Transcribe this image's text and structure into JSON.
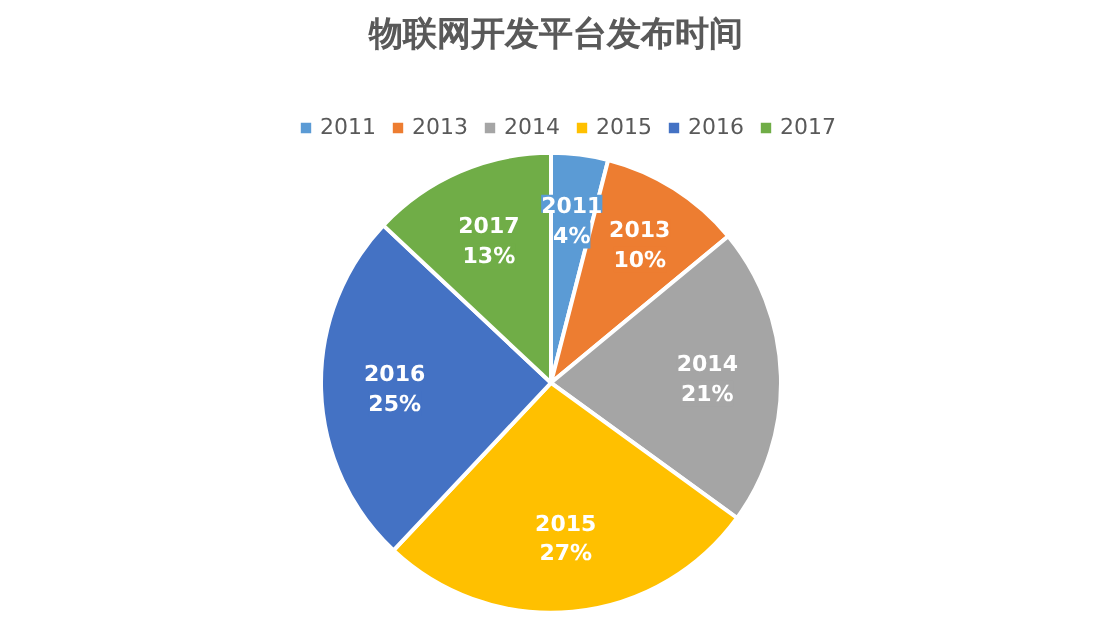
{
  "chart_data": {
    "type": "pie",
    "title": "物联网开发平台发布时间",
    "categories": [
      "2011",
      "2013",
      "2014",
      "2015",
      "2016",
      "2017"
    ],
    "values": [
      4,
      10,
      21,
      27,
      25,
      13
    ],
    "value_labels": [
      "4%",
      "10%",
      "21%",
      "27%",
      "25%",
      "13%"
    ],
    "colors": [
      "#5b9bd5",
      "#ed7d31",
      "#a5a5a5",
      "#ffc000",
      "#4472c4",
      "#70ad47"
    ],
    "legend": "top"
  }
}
